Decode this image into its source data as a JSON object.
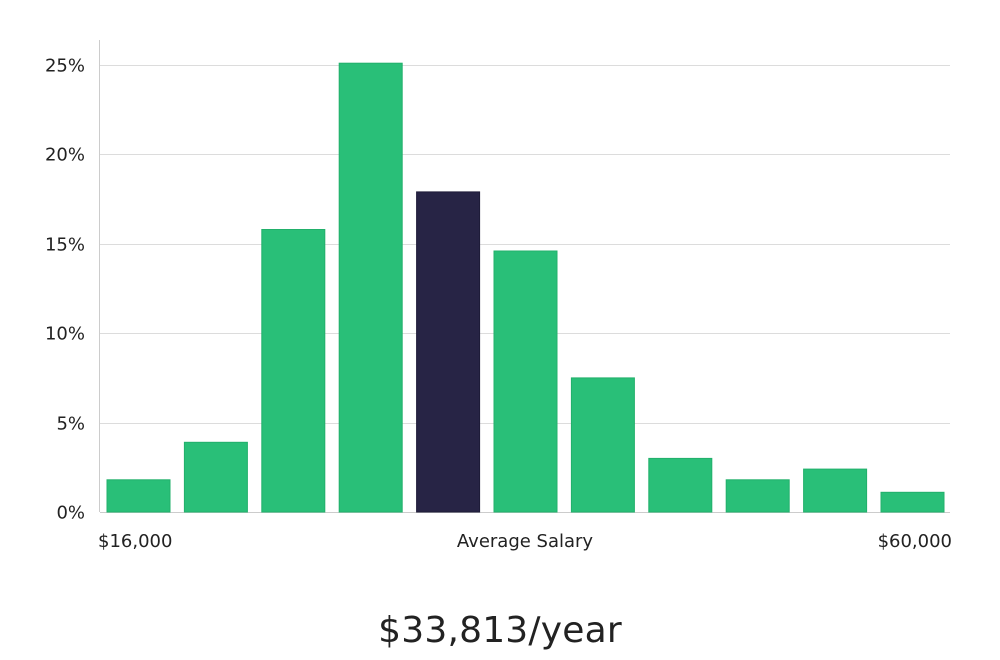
{
  "chart_data": {
    "type": "bar",
    "values": [
      1.8,
      3.9,
      15.8,
      25.1,
      17.9,
      14.6,
      7.5,
      3.0,
      1.8,
      2.4,
      1.1
    ],
    "highlight_index": 4,
    "ylim": [
      0,
      26.5
    ],
    "yticks": [
      0,
      5,
      10,
      15,
      20,
      25
    ],
    "ytick_labels": [
      "0%",
      "5%",
      "10%",
      "15%",
      "20%",
      "25%"
    ],
    "x_labels": {
      "left": "$16,000",
      "center": "Average Salary",
      "right": "$60,000"
    },
    "grid": true,
    "colors": {
      "bar": "#29bf78",
      "bar_stroke": "#22b06b",
      "highlight": "#272445",
      "grid": "#dcdcdc",
      "axis": "#cccccc"
    }
  },
  "caption": "$33,813/year"
}
